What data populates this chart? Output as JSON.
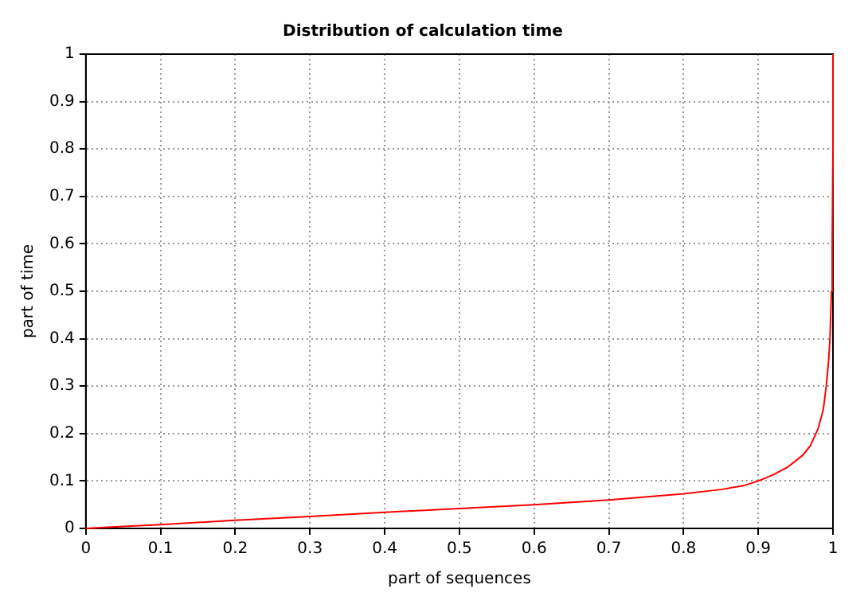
{
  "chart_data": {
    "type": "line",
    "title": "Distribution of calculation time",
    "xlabel": "part of sequences",
    "ylabel": "part of time",
    "series": [
      {
        "color": "#ff0000",
        "x": [
          0,
          0.05,
          0.1,
          0.2,
          0.3,
          0.4,
          0.5,
          0.6,
          0.7,
          0.8,
          0.85,
          0.88,
          0.9,
          0.92,
          0.94,
          0.96,
          0.97,
          0.98,
          0.987,
          0.991,
          0.994,
          0.996,
          0.998,
          0.999,
          1,
          1
        ],
        "values": [
          0,
          0.004,
          0.008,
          0.017,
          0.025,
          0.034,
          0.042,
          0.05,
          0.06,
          0.073,
          0.082,
          0.09,
          0.1,
          0.113,
          0.13,
          0.155,
          0.175,
          0.21,
          0.25,
          0.3,
          0.35,
          0.4,
          0.5,
          0.6,
          0.8,
          1
        ]
      }
    ],
    "xlim": [
      0,
      1
    ],
    "ylim": [
      0,
      1
    ],
    "xticks": [
      0,
      0.1,
      0.2,
      0.3,
      0.4,
      0.5,
      0.6,
      0.7,
      0.8,
      0.9,
      1
    ],
    "yticks": [
      0,
      0.1,
      0.2,
      0.3,
      0.4,
      0.5,
      0.6,
      0.7,
      0.8,
      0.9,
      1
    ],
    "grid": true,
    "legend": false,
    "marker": "none",
    "line_style": "solid"
  }
}
